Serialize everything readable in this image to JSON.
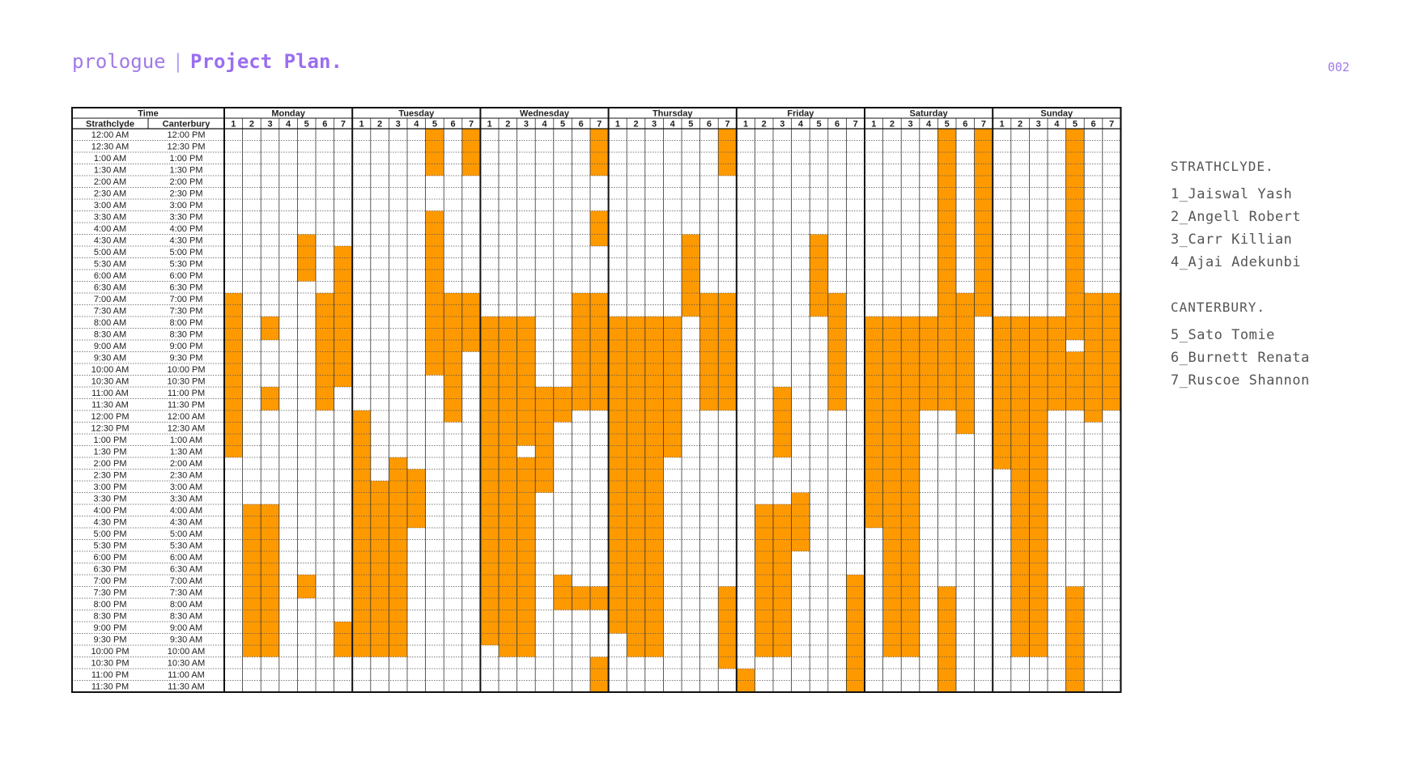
{
  "header": {
    "prefix": "prologue",
    "separator": "|",
    "title": "Project Plan.",
    "page": "002"
  },
  "table": {
    "time_header": "Time",
    "col_strathclyde": "Strathclyde",
    "col_canterbury": "Canterbury",
    "days": [
      "Monday",
      "Tuesday",
      "Wednesday",
      "Thursday",
      "Friday",
      "Saturday",
      "Sunday"
    ],
    "members": [
      "1",
      "2",
      "3",
      "4",
      "5",
      "6",
      "7"
    ],
    "strathclyde_times": [
      "12:00 AM",
      "12:30 AM",
      "1:00 AM",
      "1:30 AM",
      "2:00 AM",
      "2:30 AM",
      "3:00 AM",
      "3:30 AM",
      "4:00 AM",
      "4:30 AM",
      "5:00 AM",
      "5:30 AM",
      "6:00 AM",
      "6:30 AM",
      "7:00 AM",
      "7:30 AM",
      "8:00 AM",
      "8:30 AM",
      "9:00 AM",
      "9:30 AM",
      "10:00 AM",
      "10:30 AM",
      "11:00 AM",
      "11:30 AM",
      "12:00 PM",
      "12:30 PM",
      "1:00 PM",
      "1:30 PM",
      "2:00 PM",
      "2:30 PM",
      "3:00 PM",
      "3:30 PM",
      "4:00 PM",
      "4:30 PM",
      "5:00 PM",
      "5:30 PM",
      "6:00 PM",
      "6:30 PM",
      "7:00 PM",
      "7:30 PM",
      "8:00 PM",
      "8:30 PM",
      "9:00 PM",
      "9:30 PM",
      "10:00 PM",
      "10:30 PM",
      "11:00 PM",
      "11:30 PM"
    ],
    "canterbury_times": [
      "12:00 PM",
      "12:30 PM",
      "1:00 PM",
      "1:30 PM",
      "2:00 PM",
      "2:30 PM",
      "3:00 PM",
      "3:30 PM",
      "4:00 PM",
      "4:30 PM",
      "5:00 PM",
      "5:30 PM",
      "6:00 PM",
      "6:30 PM",
      "7:00 PM",
      "7:30 PM",
      "8:00 PM",
      "8:30 PM",
      "9:00 PM",
      "9:30 PM",
      "10:00 PM",
      "10:30 PM",
      "11:00 PM",
      "11:30 PM",
      "12:00 AM",
      "12:30 AM",
      "1:00 AM",
      "1:30 AM",
      "2:00 AM",
      "2:30 AM",
      "3:00 AM",
      "3:30 AM",
      "4:00 AM",
      "4:30 AM",
      "5:00 AM",
      "5:30 AM",
      "6:00 AM",
      "6:30 AM",
      "7:00 AM",
      "7:30 AM",
      "8:00 AM",
      "8:30 AM",
      "9:00 AM",
      "9:30 AM",
      "10:00 AM",
      "10:30 AM",
      "11:00 AM",
      "11:30 AM"
    ],
    "highlight_color": "#ff9900",
    "busy": {
      "Monday": {
        "1": [
          [
            14,
            27
          ]
        ],
        "2": [
          [
            32,
            44
          ]
        ],
        "3": [
          [
            16,
            17
          ],
          [
            22,
            23
          ],
          [
            32,
            44
          ]
        ],
        "5": [
          [
            9,
            12
          ],
          [
            38,
            39
          ]
        ],
        "6": [
          [
            14,
            23
          ]
        ],
        "7": [
          [
            10,
            21
          ],
          [
            42,
            44
          ]
        ]
      },
      "Tuesday": {
        "1": [
          [
            24,
            44
          ]
        ],
        "2": [
          [
            30,
            44
          ]
        ],
        "3": [
          [
            28,
            44
          ]
        ],
        "4": [
          [
            29,
            33
          ]
        ],
        "5": [
          [
            0,
            3
          ],
          [
            7,
            20
          ]
        ],
        "6": [
          [
            14,
            24
          ]
        ],
        "7": [
          [
            0,
            3
          ],
          [
            14,
            18
          ]
        ]
      },
      "Wednesday": {
        "1": [
          [
            16,
            43
          ]
        ],
        "2": [
          [
            16,
            44
          ]
        ],
        "3": [
          [
            16,
            26
          ],
          [
            28,
            44
          ]
        ],
        "4": [
          [
            22,
            30
          ]
        ],
        "5": [
          [
            22,
            24
          ],
          [
            38,
            40
          ]
        ],
        "6": [
          [
            14,
            23
          ],
          [
            39,
            40
          ]
        ],
        "7": [
          [
            0,
            3
          ],
          [
            7,
            9
          ],
          [
            14,
            23
          ],
          [
            39,
            40
          ],
          [
            45,
            47
          ]
        ]
      },
      "Thursday": {
        "1": [
          [
            16,
            42
          ]
        ],
        "2": [
          [
            16,
            44
          ]
        ],
        "3": [
          [
            16,
            44
          ]
        ],
        "4": [
          [
            16,
            27
          ]
        ],
        "5": [
          [
            9,
            15
          ]
        ],
        "6": [
          [
            14,
            23
          ]
        ],
        "7": [
          [
            0,
            3
          ],
          [
            14,
            23
          ],
          [
            39,
            45
          ]
        ]
      },
      "Friday": {
        "1": [
          [
            46,
            47
          ]
        ],
        "2": [
          [
            32,
            44
          ]
        ],
        "3": [
          [
            22,
            27
          ],
          [
            32,
            44
          ]
        ],
        "4": [
          [
            31,
            35
          ]
        ],
        "5": [
          [
            9,
            15
          ]
        ],
        "6": [
          [
            14,
            23
          ]
        ],
        "7": [
          [
            38,
            47
          ]
        ]
      },
      "Saturday": {
        "1": [
          [
            16,
            33
          ]
        ],
        "2": [
          [
            16,
            44
          ]
        ],
        "3": [
          [
            16,
            44
          ]
        ],
        "4": [
          [
            16,
            23
          ]
        ],
        "5": [
          [
            0,
            23
          ],
          [
            39,
            47
          ]
        ],
        "6": [
          [
            14,
            24
          ],
          [
            25,
            25
          ]
        ],
        "7": [
          [
            0,
            15
          ]
        ]
      },
      "Sunday": {
        "1": [
          [
            16,
            28
          ]
        ],
        "2": [
          [
            16,
            44
          ]
        ],
        "3": [
          [
            16,
            44
          ]
        ],
        "4": [
          [
            16,
            23
          ]
        ],
        "5": [
          [
            0,
            17
          ],
          [
            19,
            23
          ],
          [
            39,
            47
          ]
        ],
        "6": [
          [
            14,
            24
          ]
        ],
        "7": [
          [
            14,
            23
          ]
        ]
      }
    }
  },
  "legend": {
    "groups": [
      {
        "title": "STRATHCLYDE.",
        "members": [
          "1_Jaiswal Yash",
          "2_Angell Robert",
          "3_Carr Killian",
          "4_Ajai Adekunbi"
        ]
      },
      {
        "title": "CANTERBURY.",
        "members": [
          "5_Sato Tomie",
          "6_Burnett Renata",
          "7_Ruscoe Shannon"
        ]
      }
    ]
  }
}
